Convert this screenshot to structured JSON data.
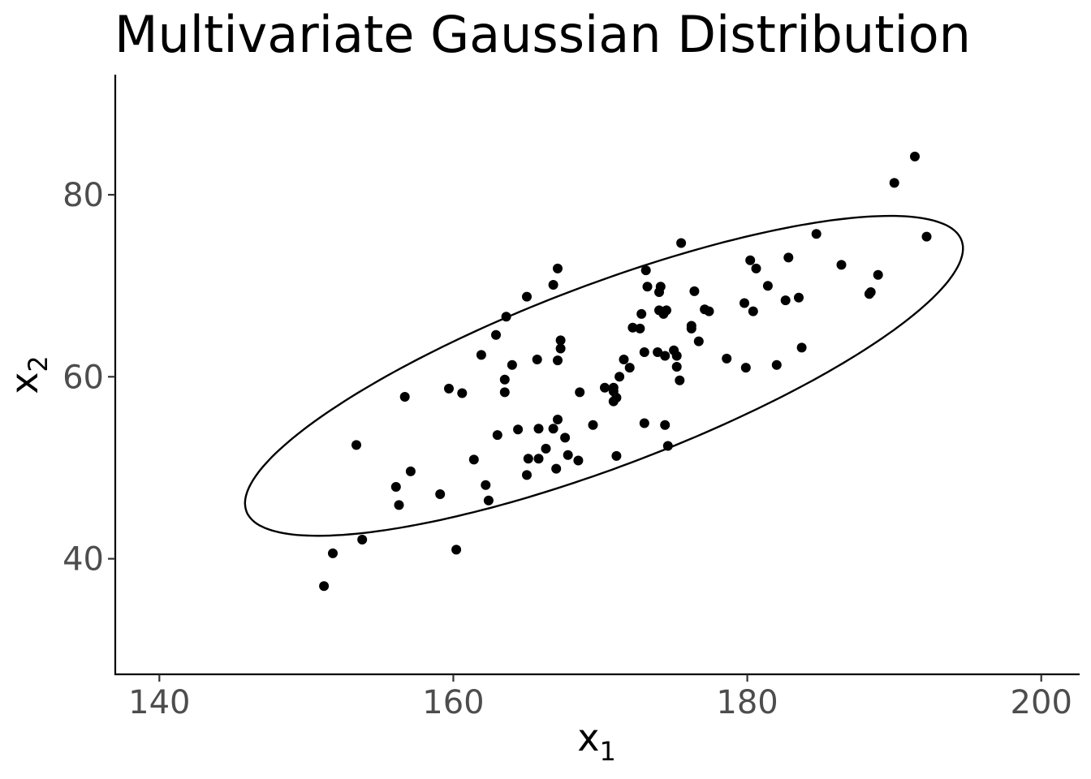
{
  "chart_data": {
    "type": "scatter",
    "title": "Multivariate Gaussian Distribution",
    "xlabel": {
      "base": "x",
      "sub": "1"
    },
    "ylabel": {
      "base": "x",
      "sub": "2"
    },
    "xlim": [
      137,
      202.5
    ],
    "ylim": [
      27.3,
      93.2
    ],
    "xticks": [
      140,
      160,
      180,
      200
    ],
    "yticks": [
      40,
      60,
      80
    ],
    "grid": false,
    "legend": "none",
    "point_color": "#000000",
    "ellipse": {
      "center": [
        170.25,
        60.1
      ],
      "semi_axis_major": 28.7,
      "semi_axis_minor": 9.04,
      "angle_deg": 33.6
    },
    "points": [
      [
        191.4,
        84.2
      ],
      [
        190.0,
        81.3
      ],
      [
        192.2,
        75.4
      ],
      [
        184.7,
        75.7
      ],
      [
        175.5,
        74.7
      ],
      [
        180.2,
        72.8
      ],
      [
        180.6,
        71.9
      ],
      [
        182.8,
        73.1
      ],
      [
        186.4,
        72.3
      ],
      [
        188.9,
        71.2
      ],
      [
        167.1,
        71.9
      ],
      [
        173.1,
        71.7
      ],
      [
        166.8,
        70.1
      ],
      [
        173.2,
        69.9
      ],
      [
        174.0,
        69.3
      ],
      [
        174.1,
        69.9
      ],
      [
        176.4,
        69.4
      ],
      [
        181.4,
        70.0
      ],
      [
        165.0,
        68.8
      ],
      [
        179.8,
        68.1
      ],
      [
        182.6,
        68.4
      ],
      [
        183.5,
        68.7
      ],
      [
        188.3,
        69.1
      ],
      [
        188.4,
        69.3
      ],
      [
        163.6,
        66.6
      ],
      [
        172.8,
        66.9
      ],
      [
        174.0,
        67.3
      ],
      [
        174.3,
        66.9
      ],
      [
        174.5,
        67.3
      ],
      [
        177.1,
        67.4
      ],
      [
        177.4,
        67.2
      ],
      [
        180.4,
        67.2
      ],
      [
        162.9,
        64.6
      ],
      [
        172.2,
        65.4
      ],
      [
        172.7,
        65.3
      ],
      [
        176.2,
        65.3
      ],
      [
        176.2,
        65.6
      ],
      [
        167.3,
        64.0
      ],
      [
        167.3,
        63.1
      ],
      [
        176.7,
        63.9
      ],
      [
        161.9,
        62.4
      ],
      [
        173.0,
        62.7
      ],
      [
        173.9,
        62.7
      ],
      [
        174.4,
        62.3
      ],
      [
        175.0,
        62.9
      ],
      [
        175.2,
        62.3
      ],
      [
        183.7,
        63.2
      ],
      [
        164.0,
        61.3
      ],
      [
        165.7,
        61.9
      ],
      [
        167.1,
        61.8
      ],
      [
        171.6,
        61.9
      ],
      [
        172.0,
        61.0
      ],
      [
        175.2,
        61.1
      ],
      [
        178.6,
        62.0
      ],
      [
        179.9,
        61.0
      ],
      [
        182.0,
        61.3
      ],
      [
        163.5,
        59.7
      ],
      [
        171.3,
        60.0
      ],
      [
        175.4,
        59.6
      ],
      [
        159.7,
        58.7
      ],
      [
        160.6,
        58.2
      ],
      [
        163.5,
        58.3
      ],
      [
        156.7,
        57.8
      ],
      [
        168.6,
        58.3
      ],
      [
        170.3,
        58.8
      ],
      [
        170.9,
        58.8
      ],
      [
        170.9,
        58.4
      ],
      [
        171.1,
        57.7
      ],
      [
        170.9,
        57.3
      ],
      [
        167.1,
        55.3
      ],
      [
        164.4,
        54.2
      ],
      [
        165.8,
        54.3
      ],
      [
        166.8,
        54.3
      ],
      [
        169.5,
        54.7
      ],
      [
        173.0,
        54.9
      ],
      [
        174.4,
        54.7
      ],
      [
        163.0,
        53.6
      ],
      [
        167.6,
        53.3
      ],
      [
        166.3,
        52.1
      ],
      [
        174.6,
        52.4
      ],
      [
        165.1,
        51.0
      ],
      [
        165.8,
        51.0
      ],
      [
        167.8,
        51.4
      ],
      [
        168.5,
        50.8
      ],
      [
        171.1,
        51.3
      ],
      [
        161.4,
        50.9
      ],
      [
        167.0,
        49.9
      ],
      [
        157.1,
        49.6
      ],
      [
        165.0,
        49.2
      ],
      [
        156.1,
        47.9
      ],
      [
        162.2,
        48.1
      ],
      [
        159.1,
        47.1
      ],
      [
        156.3,
        45.9
      ],
      [
        162.4,
        46.4
      ],
      [
        153.4,
        52.5
      ],
      [
        153.8,
        42.1
      ],
      [
        160.2,
        41.0
      ],
      [
        151.8,
        40.6
      ],
      [
        151.2,
        37.0
      ]
    ]
  }
}
